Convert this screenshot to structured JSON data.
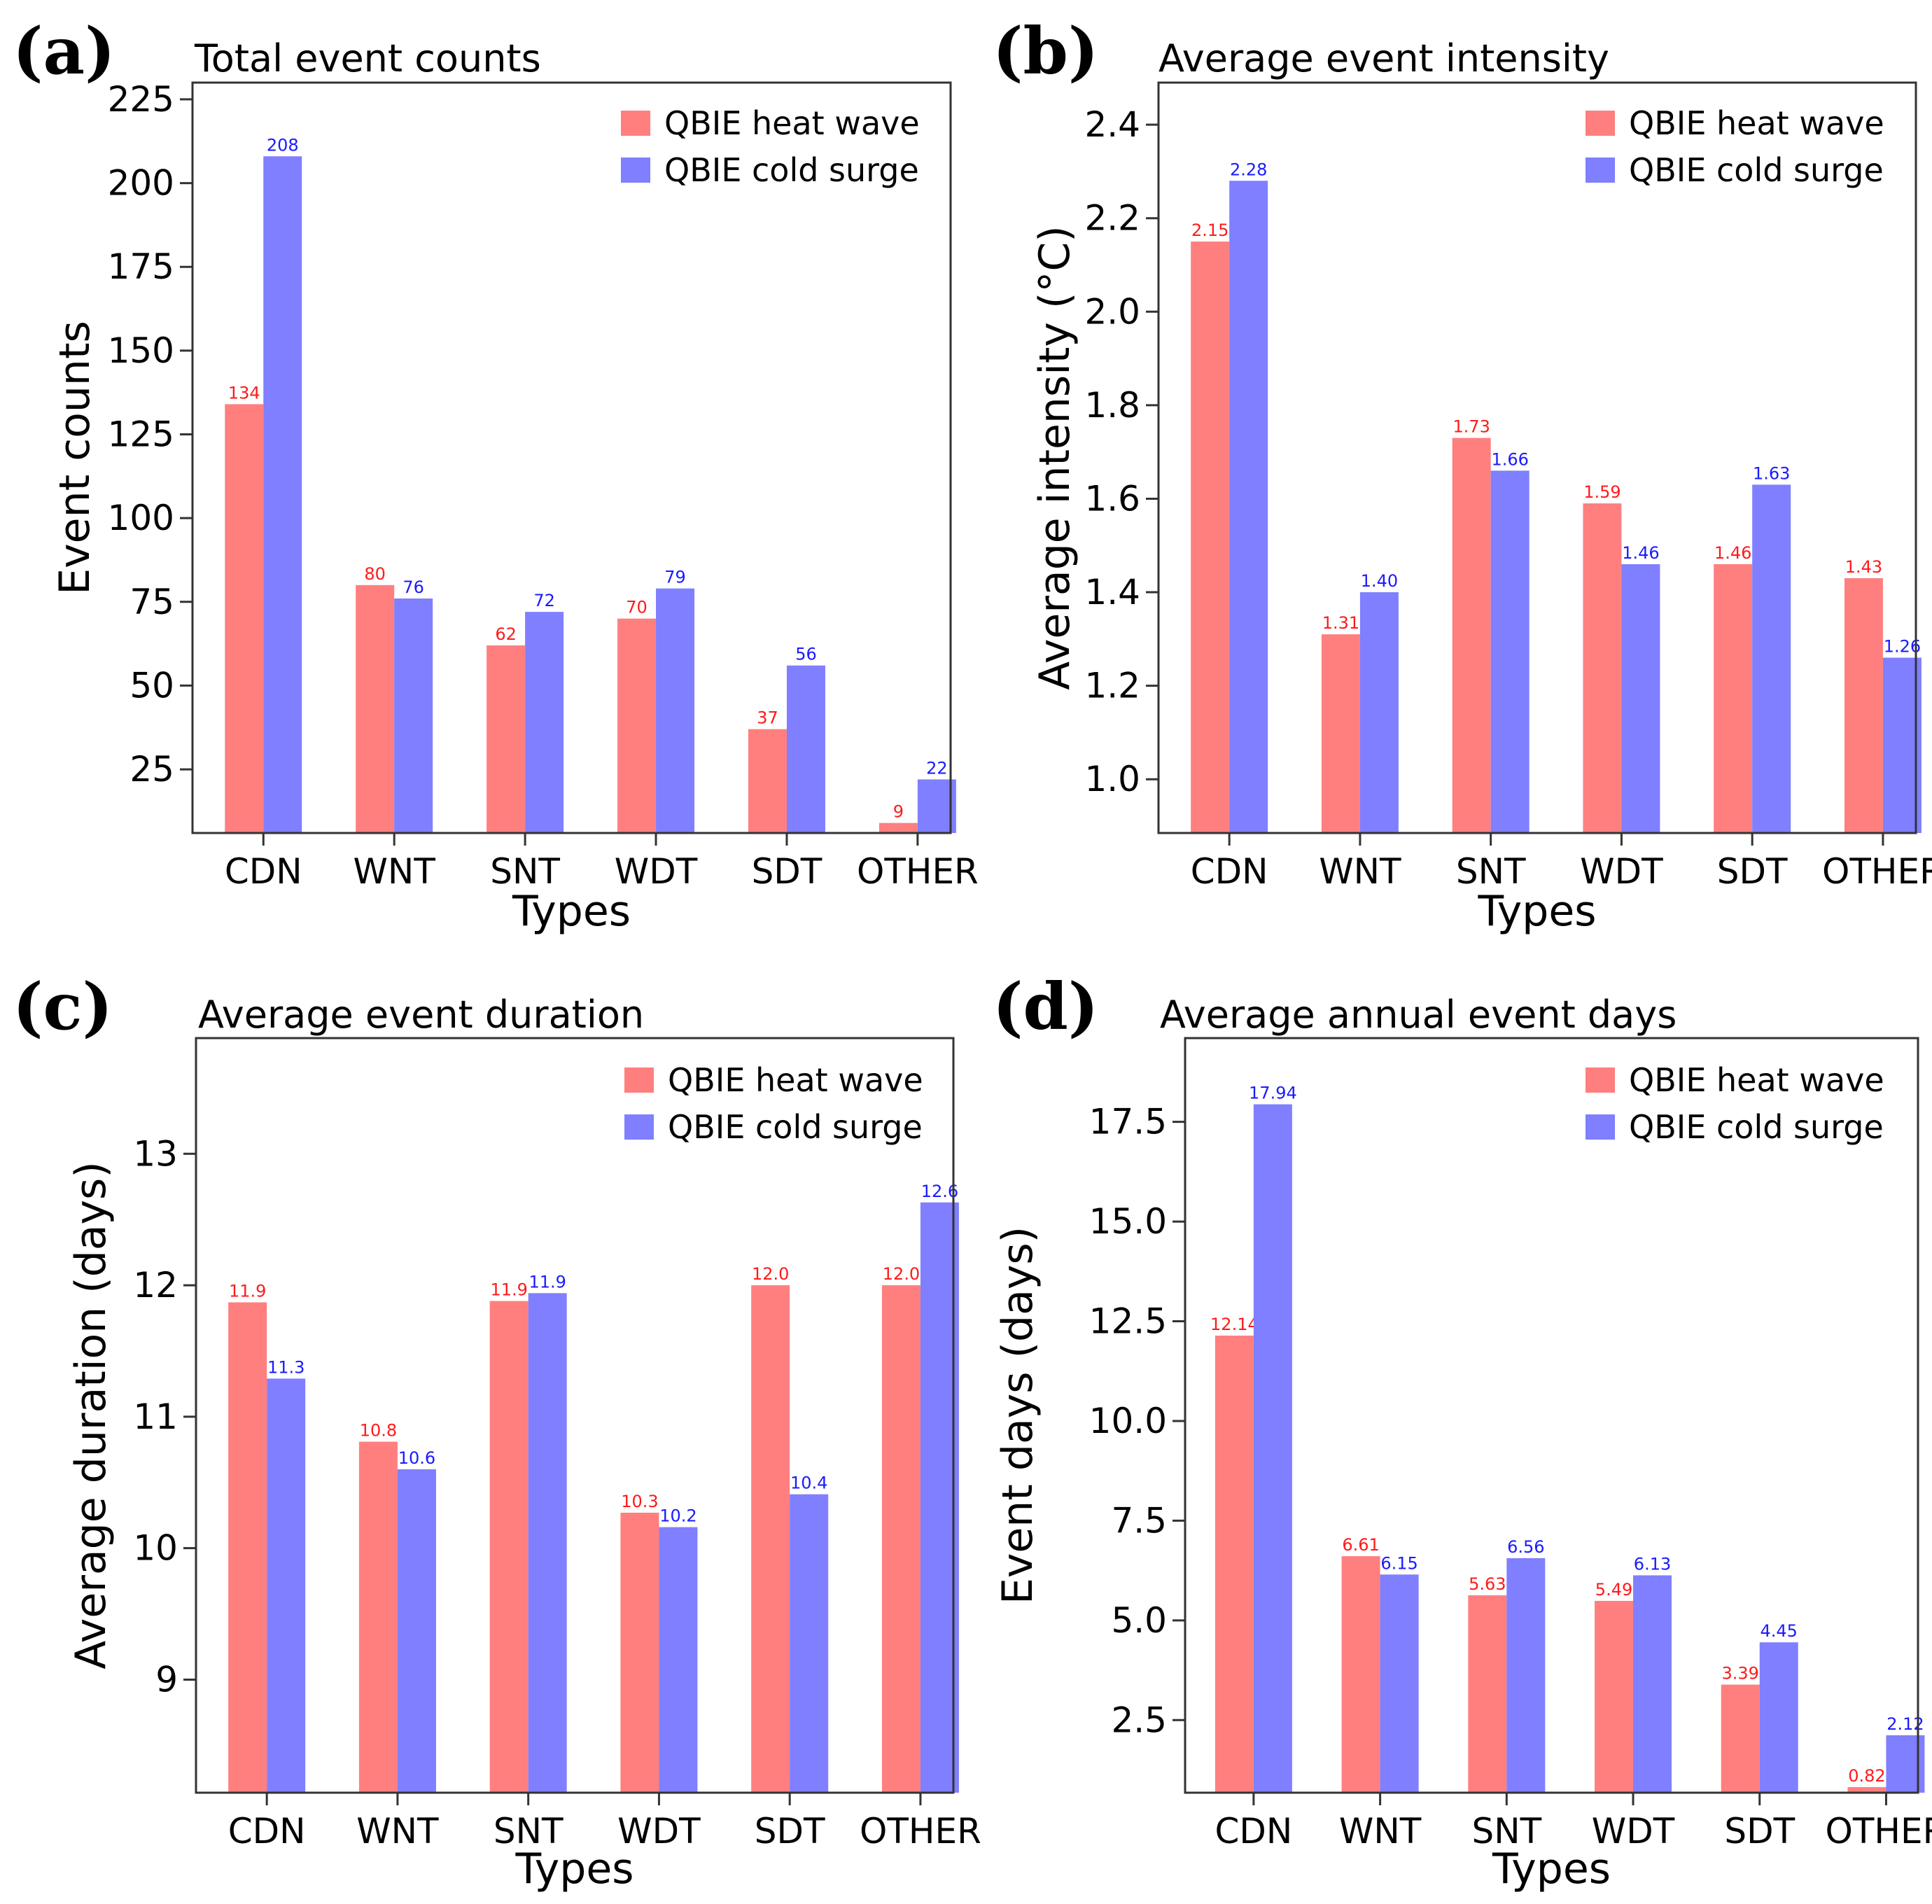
{
  "series_names": [
    "QBIE heat wave",
    "QBIE cold surge"
  ],
  "colors": {
    "heat": "#ff7f7f",
    "cold": "#7f7fff",
    "heat_text": "#ff1a1a",
    "cold_text": "#1a1aff"
  },
  "chart_data": [
    {
      "panel": "(a)",
      "type": "bar",
      "title": "Total event counts",
      "xlabel": "Types",
      "ylabel": "Event counts",
      "categories": [
        "CDN",
        "WNT",
        "SNT",
        "WDT",
        "SDT",
        "OTHER"
      ],
      "series": [
        {
          "name": "QBIE heat wave",
          "values": [
            134,
            80,
            62,
            70,
            37,
            9
          ],
          "labels": [
            "134",
            "80",
            "62",
            "70",
            "37",
            "9"
          ]
        },
        {
          "name": "QBIE cold surge",
          "values": [
            208,
            76,
            72,
            79,
            56,
            22
          ],
          "labels": [
            "208",
            "76",
            "72",
            "79",
            "56",
            "22"
          ]
        }
      ],
      "ylim": [
        6,
        230
      ],
      "yticks": [
        25,
        50,
        75,
        100,
        125,
        150,
        175,
        200,
        225
      ],
      "ytick_labels": [
        "25",
        "50",
        "75",
        "100",
        "125",
        "150",
        "175",
        "200",
        "225"
      ],
      "legend": "top-right"
    },
    {
      "panel": "(b)",
      "type": "bar",
      "title": "Average event intensity",
      "xlabel": "Types",
      "ylabel": "Average intensity (°C)",
      "categories": [
        "CDN",
        "WNT",
        "SNT",
        "WDT",
        "SDT",
        "OTHER"
      ],
      "series": [
        {
          "name": "QBIE heat wave",
          "values": [
            2.15,
            1.31,
            1.73,
            1.59,
            1.46,
            1.43
          ],
          "labels": [
            "2.15",
            "1.31",
            "1.73",
            "1.59",
            "1.46",
            "1.43"
          ]
        },
        {
          "name": "QBIE cold surge",
          "values": [
            2.28,
            1.4,
            1.66,
            1.46,
            1.63,
            1.26
          ],
          "labels": [
            "2.28",
            "1.40",
            "1.66",
            "1.46",
            "1.63",
            "1.26"
          ]
        }
      ],
      "ylim": [
        0.885,
        2.49
      ],
      "yticks": [
        1.0,
        1.2,
        1.4,
        1.6,
        1.8,
        2.0,
        2.2,
        2.4
      ],
      "ytick_labels": [
        "1.0",
        "1.2",
        "1.4",
        "1.6",
        "1.8",
        "2.0",
        "2.2",
        "2.4"
      ],
      "legend": "top-right"
    },
    {
      "panel": "(c)",
      "type": "bar",
      "title": "Average event duration",
      "xlabel": "Types",
      "ylabel": "Average duration (days)",
      "categories": [
        "CDN",
        "WNT",
        "SNT",
        "WDT",
        "SDT",
        "OTHER"
      ],
      "series": [
        {
          "name": "QBIE heat wave",
          "values": [
            11.87,
            10.81,
            11.88,
            10.27,
            12.0,
            12.0
          ],
          "labels": [
            "11.9",
            "10.8",
            "11.9",
            "10.3",
            "12.0",
            "12.0"
          ]
        },
        {
          "name": "QBIE cold surge",
          "values": [
            11.29,
            10.6,
            11.94,
            10.16,
            10.41,
            12.63
          ],
          "labels": [
            "11.3",
            "10.6",
            "11.9",
            "10.2",
            "10.4",
            "12.6"
          ]
        }
      ],
      "ylim": [
        8.14,
        13.88
      ],
      "yticks": [
        9,
        10,
        11,
        12,
        13
      ],
      "ytick_labels": [
        "9",
        "10",
        "11",
        "12",
        "13"
      ],
      "legend": "top-right"
    },
    {
      "panel": "(d)",
      "type": "bar",
      "title": "Average annual event days",
      "xlabel": "Types",
      "ylabel": "Event days (days)",
      "categories": [
        "CDN",
        "WNT",
        "SNT",
        "WDT",
        "SDT",
        "OTHER"
      ],
      "series": [
        {
          "name": "QBIE heat wave",
          "values": [
            12.14,
            6.61,
            5.63,
            5.49,
            3.39,
            0.82
          ],
          "labels": [
            "12.14",
            "6.61",
            "5.63",
            "5.49",
            "3.39",
            "0.82"
          ]
        },
        {
          "name": "QBIE cold surge",
          "values": [
            17.94,
            6.15,
            6.56,
            6.13,
            4.45,
            2.12
          ],
          "labels": [
            "17.94",
            "6.15",
            "6.56",
            "6.13",
            "4.45",
            "2.12"
          ]
        }
      ],
      "ylim": [
        0.68,
        19.6
      ],
      "yticks": [
        2.5,
        5.0,
        7.5,
        10.0,
        12.5,
        15.0,
        17.5
      ],
      "ytick_labels": [
        "2.5",
        "5.0",
        "7.5",
        "10.0",
        "12.5",
        "15.0",
        "17.5"
      ],
      "legend": "top-right"
    }
  ]
}
